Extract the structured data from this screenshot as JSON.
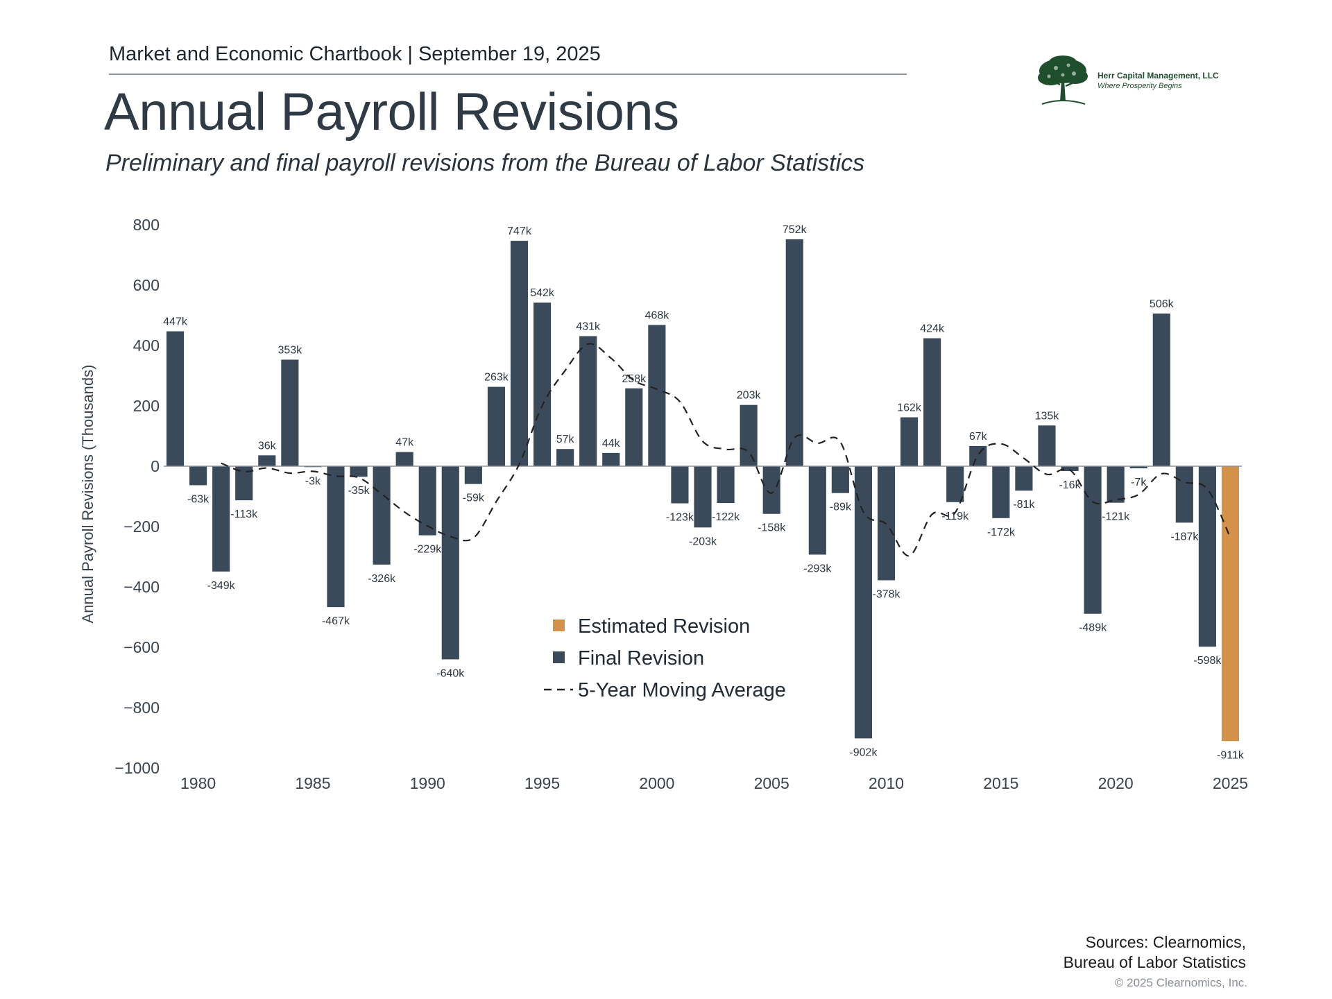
{
  "header": {
    "chartbook": "Market and Economic Chartbook | September 19, 2025",
    "title": "Annual Payroll Revisions",
    "subtitle": "Preliminary and final payroll revisions from the Bureau of Labor Statistics"
  },
  "logo": {
    "name": "Herr Capital Management, LLC",
    "tagline": "Where Prosperity Begins",
    "icon": "tree-icon"
  },
  "footer": {
    "sources_line1": "Sources: Clearnomics,",
    "sources_line2": "Bureau of Labor Statistics",
    "copyright": "© 2025 Clearnomics, Inc."
  },
  "chart_data": {
    "type": "bar",
    "ylabel": "Annual Payroll Revisions (Thousands)",
    "xlabel": "",
    "ylim": [
      -1000,
      800
    ],
    "yticks": [
      800,
      600,
      400,
      200,
      0,
      -200,
      -400,
      -600,
      -800,
      -1000
    ],
    "ytick_labels": [
      "800",
      "600",
      "400",
      "200",
      "0",
      "−200",
      "−400",
      "−600",
      "−800",
      "−1000"
    ],
    "xticks": [
      1980,
      1985,
      1990,
      1995,
      2000,
      2005,
      2010,
      2015,
      2020,
      2025
    ],
    "xlim": [
      1978.5,
      2025.5
    ],
    "grid": false,
    "legend_position": "bottom-center",
    "colors": {
      "final": "#3a4a5a",
      "estimated": "#d4914a",
      "moving_average": "#222222"
    },
    "legend": [
      {
        "label": "Estimated Revision",
        "kind": "bar",
        "color": "#d4914a"
      },
      {
        "label": "Final Revision",
        "kind": "bar",
        "color": "#3a4a5a"
      },
      {
        "label": "5-Year Moving Average",
        "kind": "dash",
        "color": "#222222"
      }
    ],
    "bars": [
      {
        "year": 1979,
        "value": 447,
        "label": "447k",
        "kind": "final"
      },
      {
        "year": 1980,
        "value": -63,
        "label": "-63k",
        "kind": "final"
      },
      {
        "year": 1981,
        "value": -349,
        "label": "-349k",
        "kind": "final"
      },
      {
        "year": 1982,
        "value": -113,
        "label": "-113k",
        "kind": "final"
      },
      {
        "year": 1983,
        "value": 36,
        "label": "36k",
        "kind": "final"
      },
      {
        "year": 1984,
        "value": 353,
        "label": "353k",
        "kind": "final"
      },
      {
        "year": 1985,
        "value": -3,
        "label": "-3k",
        "kind": "final"
      },
      {
        "year": 1986,
        "value": -467,
        "label": "-467k",
        "kind": "final"
      },
      {
        "year": 1987,
        "value": -35,
        "label": "-35k",
        "kind": "final"
      },
      {
        "year": 1988,
        "value": -326,
        "label": "-326k",
        "kind": "final"
      },
      {
        "year": 1989,
        "value": 47,
        "label": "47k",
        "kind": "final"
      },
      {
        "year": 1990,
        "value": -229,
        "label": "-229k",
        "kind": "final"
      },
      {
        "year": 1991,
        "value": -640,
        "label": "-640k",
        "kind": "final"
      },
      {
        "year": 1992,
        "value": -59,
        "label": "-59k",
        "kind": "final"
      },
      {
        "year": 1993,
        "value": 263,
        "label": "263k",
        "kind": "final"
      },
      {
        "year": 1994,
        "value": 747,
        "label": "747k",
        "kind": "final"
      },
      {
        "year": 1995,
        "value": 542,
        "label": "542k",
        "kind": "final"
      },
      {
        "year": 1996,
        "value": 57,
        "label": "57k",
        "kind": "final"
      },
      {
        "year": 1997,
        "value": 431,
        "label": "431k",
        "kind": "final"
      },
      {
        "year": 1998,
        "value": 44,
        "label": "44k",
        "kind": "final"
      },
      {
        "year": 1999,
        "value": 258,
        "label": "258k",
        "kind": "final"
      },
      {
        "year": 2000,
        "value": 468,
        "label": "468k",
        "kind": "final"
      },
      {
        "year": 2001,
        "value": -123,
        "label": "-123k",
        "kind": "final"
      },
      {
        "year": 2002,
        "value": -203,
        "label": "-203k",
        "kind": "final"
      },
      {
        "year": 2003,
        "value": -122,
        "label": "-122k",
        "kind": "final"
      },
      {
        "year": 2004,
        "value": 203,
        "label": "203k",
        "kind": "final"
      },
      {
        "year": 2005,
        "value": -158,
        "label": "-158k",
        "kind": "final"
      },
      {
        "year": 2006,
        "value": 752,
        "label": "752k",
        "kind": "final"
      },
      {
        "year": 2007,
        "value": -293,
        "label": "-293k",
        "kind": "final"
      },
      {
        "year": 2008,
        "value": -89,
        "label": "-89k",
        "kind": "final"
      },
      {
        "year": 2009,
        "value": -902,
        "label": "-902k",
        "kind": "final"
      },
      {
        "year": 2010,
        "value": -378,
        "label": "-378k",
        "kind": "final"
      },
      {
        "year": 2011,
        "value": 162,
        "label": "162k",
        "kind": "final"
      },
      {
        "year": 2012,
        "value": 424,
        "label": "424k",
        "kind": "final"
      },
      {
        "year": 2013,
        "value": -119,
        "label": "-119k",
        "kind": "final"
      },
      {
        "year": 2014,
        "value": 67,
        "label": "67k",
        "kind": "final"
      },
      {
        "year": 2015,
        "value": -172,
        "label": "-172k",
        "kind": "final"
      },
      {
        "year": 2016,
        "value": -81,
        "label": "-81k",
        "kind": "final"
      },
      {
        "year": 2017,
        "value": 135,
        "label": "135k",
        "kind": "final"
      },
      {
        "year": 2018,
        "value": -16,
        "label": "-16k",
        "kind": "final"
      },
      {
        "year": 2019,
        "value": -489,
        "label": "-489k",
        "kind": "final"
      },
      {
        "year": 2020,
        "value": -121,
        "label": "-121k",
        "kind": "final"
      },
      {
        "year": 2021,
        "value": -7,
        "label": "-7k",
        "kind": "final"
      },
      {
        "year": 2022,
        "value": 506,
        "label": "506k",
        "kind": "final"
      },
      {
        "year": 2023,
        "value": -187,
        "label": "-187k",
        "kind": "final"
      },
      {
        "year": 2024,
        "value": -598,
        "label": "-598k",
        "kind": "final"
      },
      {
        "year": 2025,
        "value": -911,
        "label": "-911k",
        "kind": "estimated"
      }
    ],
    "moving_average": {
      "x": [
        1981,
        1982,
        1983,
        1984,
        1985,
        1986,
        1987,
        1988,
        1989,
        1990,
        1991,
        1992,
        1993,
        1994,
        1995,
        1996,
        1997,
        1998,
        1999,
        2000,
        2001,
        2002,
        2003,
        2004,
        2005,
        2006,
        2007,
        2008,
        2009,
        2010,
        2011,
        2012,
        2013,
        2014,
        2015,
        2016,
        2017,
        2018,
        2019,
        2020,
        2021,
        2022,
        2023,
        2024,
        2025
      ],
      "y": [
        10,
        -18,
        -6,
        -23,
        -17,
        -33,
        -38,
        -92,
        -152,
        -198,
        -233,
        -238,
        -117,
        7,
        201,
        317,
        405,
        358,
        284,
        255,
        214,
        82,
        56,
        47,
        -89,
        94,
        76,
        80,
        -151,
        -192,
        -297,
        -159,
        -154,
        37,
        74,
        26,
        -27,
        -12,
        -118,
        -111,
        -94,
        -25,
        -53,
        -76,
        -237
      ]
    }
  }
}
